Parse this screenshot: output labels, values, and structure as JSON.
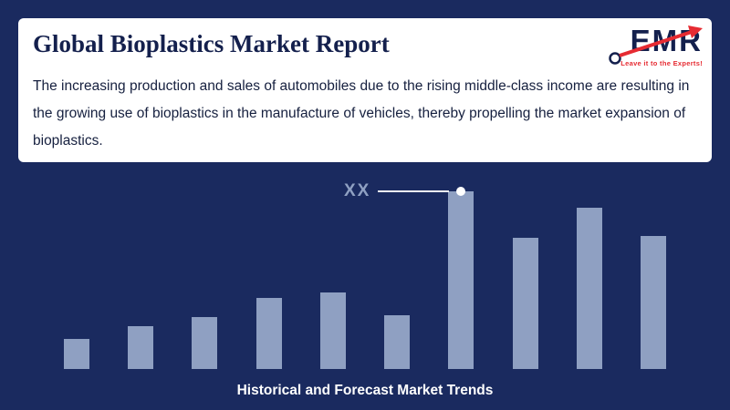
{
  "page": {
    "title": "Global Bioplastics Market Report",
    "description": "The increasing production and sales of automobiles due to the rising middle-class income are resulting in the growing use of bioplastics in the manufacture of vehicles, thereby propelling the market expansion of bioplastics.",
    "caption": "Historical and Forecast Market Trends",
    "logo": {
      "text": "EMR",
      "tagline": "Leave it to the Experts!"
    },
    "colors": {
      "background": "#1a2a5f",
      "bar": "#8fa0c2",
      "accent_red": "#e62b32",
      "title_navy": "#14204d",
      "annotation": "#ffffff"
    }
  },
  "chart_data": {
    "type": "bar",
    "title": "Historical and Forecast Market Trends",
    "categories": [
      "",
      "",
      "",
      "",
      "",
      "",
      "",
      "",
      "",
      ""
    ],
    "values": [
      17,
      24,
      29,
      40,
      43,
      30,
      100,
      74,
      91,
      75
    ],
    "xlabel": "",
    "ylabel": "",
    "ylim": [
      0,
      100
    ],
    "grid": false,
    "legend": false,
    "annotation": {
      "label": "XX",
      "bar_index": 6
    }
  }
}
